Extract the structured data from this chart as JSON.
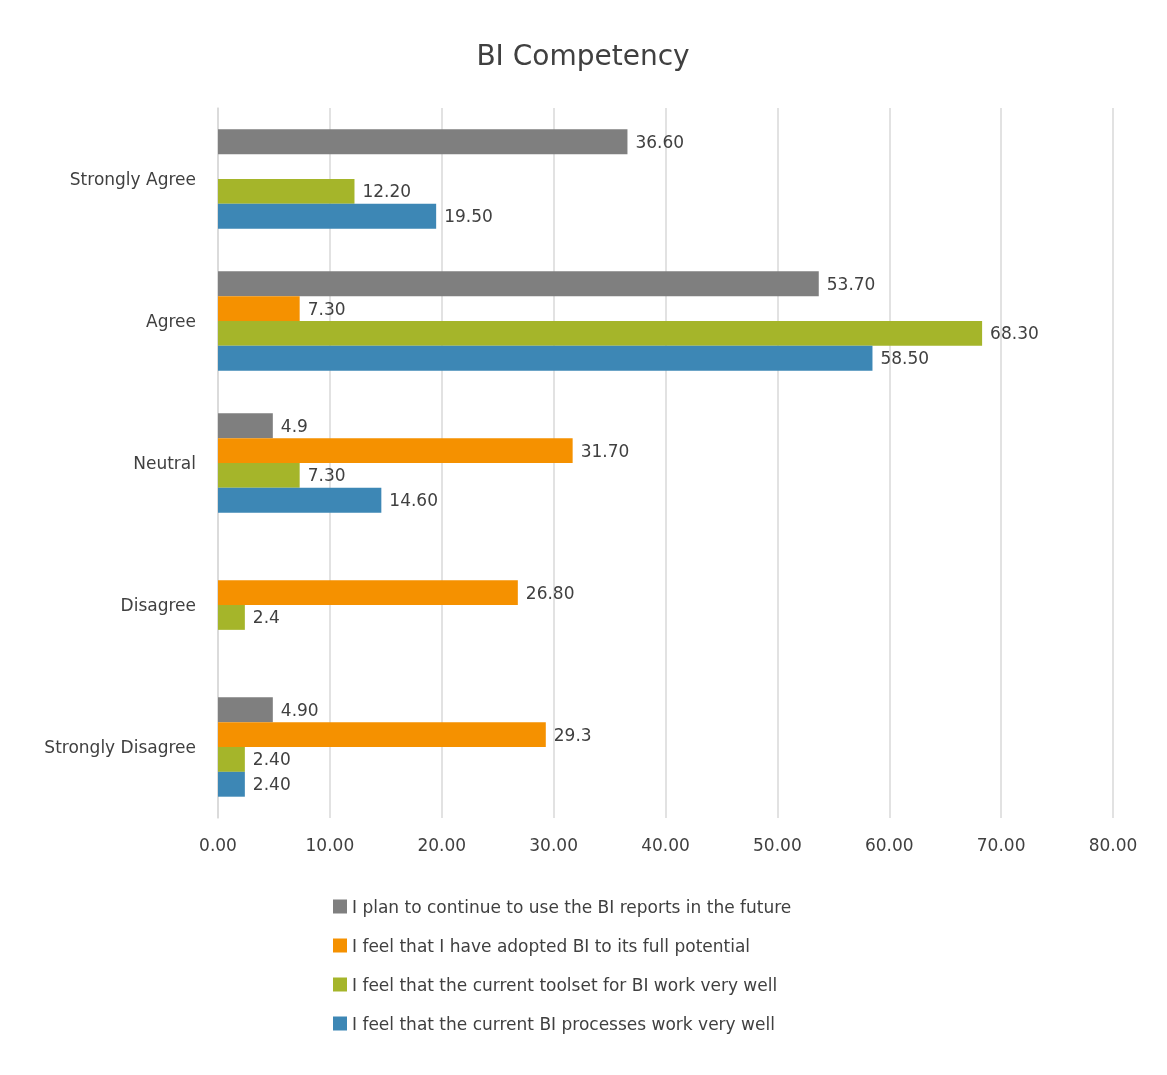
{
  "chart_data": {
    "type": "bar",
    "orientation": "horizontal",
    "title": "BI Competency",
    "categories": [
      "Strongly Agree",
      "Agree",
      "Neutral",
      "Disagree",
      "Strongly Disagree"
    ],
    "series": [
      {
        "name": "I plan to continue to use the BI reports in the future",
        "color": "#7f7f7f",
        "values": [
          36.6,
          53.7,
          4.9,
          null,
          4.9
        ],
        "value_labels": [
          "36.60",
          "53.70",
          "4.9",
          null,
          "4.90"
        ]
      },
      {
        "name": "I feel that I have adopted BI to its full potential",
        "color": "#f59100",
        "values": [
          null,
          7.3,
          31.7,
          26.8,
          29.3
        ],
        "value_labels": [
          null,
          "7.30",
          "31.70",
          "26.80",
          "29.3"
        ]
      },
      {
        "name": "I feel that the current toolset for BI work very well",
        "color": "#a5b52a",
        "values": [
          12.2,
          68.3,
          7.3,
          2.4,
          2.4
        ],
        "value_labels": [
          "12.20",
          "68.30",
          "7.30",
          "2.4",
          "2.40"
        ]
      },
      {
        "name": "I feel that the current BI processes work very well",
        "color": "#3d87b5",
        "values": [
          19.5,
          58.5,
          14.6,
          null,
          2.4
        ],
        "value_labels": [
          "19.50",
          "58.50",
          "14.60",
          null,
          "2.40"
        ]
      }
    ],
    "xlim": [
      0,
      80
    ],
    "xticks": [
      {
        "value": 0,
        "label": "0.00"
      },
      {
        "value": 10,
        "label": "10.00"
      },
      {
        "value": 20,
        "label": "20.00"
      },
      {
        "value": 30,
        "label": "30.00"
      },
      {
        "value": 40,
        "label": "40.00"
      },
      {
        "value": 50,
        "label": "50.00"
      },
      {
        "value": 60,
        "label": "60.00"
      },
      {
        "value": 70,
        "label": "70.00"
      },
      {
        "value": 80,
        "label": "80.00"
      }
    ],
    "grid": "x",
    "legend": "bottom"
  }
}
